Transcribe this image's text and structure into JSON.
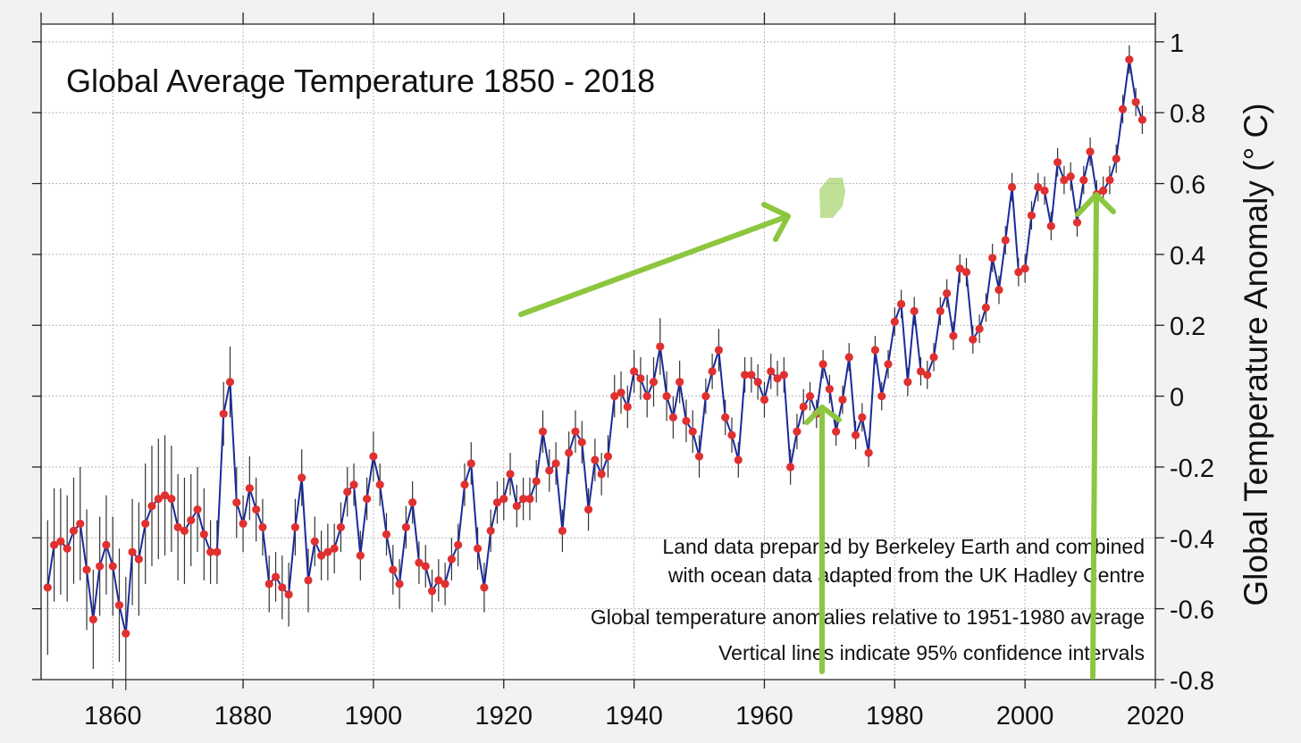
{
  "chart_data": {
    "type": "line",
    "title": "Global Average Temperature 1850 - 2018",
    "ylabel": "Global Temperature Anomaly (° C)",
    "xlabel": "",
    "xlim": [
      1849,
      2020
    ],
    "ylim": [
      -0.8,
      1.05
    ],
    "x_ticks": [
      1860,
      1880,
      1900,
      1920,
      1940,
      1960,
      1980,
      2000,
      2020
    ],
    "x_tick_labels": [
      "1860",
      "1880",
      "1900",
      "1920",
      "1940",
      "1960",
      "1980",
      "2000",
      "2020"
    ],
    "y_ticks": [
      -0.8,
      -0.6,
      -0.4,
      -0.2,
      0,
      0.2,
      0.4,
      0.6,
      0.8,
      1
    ],
    "y_tick_labels": [
      "-0.8",
      "-0.6",
      "-0.4",
      "-0.2",
      "0",
      "0.2",
      "0.4",
      "0.6",
      "0.8",
      "1"
    ],
    "grid": true,
    "line_color": "#1a2a9c",
    "marker_color": "#e03030",
    "errorbar_color": "#333333",
    "annotation_color": "#8dc63f",
    "annotations": [
      "Land data prepared by Berkeley Earth and combined",
      "with ocean data adapted from the UK Hadley Centre",
      "Global temperature anomalies relative to 1951-1980 average",
      "Vertical lines indicate 95% confidence intervals"
    ],
    "x": [
      1850,
      1851,
      1852,
      1853,
      1854,
      1855,
      1856,
      1857,
      1858,
      1859,
      1860,
      1861,
      1862,
      1863,
      1864,
      1865,
      1866,
      1867,
      1868,
      1869,
      1870,
      1871,
      1872,
      1873,
      1874,
      1875,
      1876,
      1877,
      1878,
      1879,
      1880,
      1881,
      1882,
      1883,
      1884,
      1885,
      1886,
      1887,
      1888,
      1889,
      1890,
      1891,
      1892,
      1893,
      1894,
      1895,
      1896,
      1897,
      1898,
      1899,
      1900,
      1901,
      1902,
      1903,
      1904,
      1905,
      1906,
      1907,
      1908,
      1909,
      1910,
      1911,
      1912,
      1913,
      1914,
      1915,
      1916,
      1917,
      1918,
      1919,
      1920,
      1921,
      1922,
      1923,
      1924,
      1925,
      1926,
      1927,
      1928,
      1929,
      1930,
      1931,
      1932,
      1933,
      1934,
      1935,
      1936,
      1937,
      1938,
      1939,
      1940,
      1941,
      1942,
      1943,
      1944,
      1945,
      1946,
      1947,
      1948,
      1949,
      1950,
      1951,
      1952,
      1953,
      1954,
      1955,
      1956,
      1957,
      1958,
      1959,
      1960,
      1961,
      1962,
      1963,
      1964,
      1965,
      1966,
      1967,
      1968,
      1969,
      1970,
      1971,
      1972,
      1973,
      1974,
      1975,
      1976,
      1977,
      1978,
      1979,
      1980,
      1981,
      1982,
      1983,
      1984,
      1985,
      1986,
      1987,
      1988,
      1989,
      1990,
      1991,
      1992,
      1993,
      1994,
      1995,
      1996,
      1997,
      1998,
      1999,
      2000,
      2001,
      2002,
      2003,
      2004,
      2005,
      2006,
      2007,
      2008,
      2009,
      2010,
      2011,
      2012,
      2013,
      2014,
      2015,
      2016,
      2017,
      2018
    ],
    "values": [
      -0.54,
      -0.42,
      -0.41,
      -0.43,
      -0.38,
      -0.36,
      -0.49,
      -0.63,
      -0.48,
      -0.42,
      -0.48,
      -0.59,
      -0.67,
      -0.44,
      -0.46,
      -0.36,
      -0.31,
      -0.29,
      -0.28,
      -0.29,
      -0.37,
      -0.38,
      -0.35,
      -0.32,
      -0.39,
      -0.44,
      -0.44,
      -0.05,
      0.04,
      -0.3,
      -0.36,
      -0.26,
      -0.32,
      -0.37,
      -0.53,
      -0.51,
      -0.54,
      -0.56,
      -0.37,
      -0.23,
      -0.52,
      -0.41,
      -0.45,
      -0.44,
      -0.43,
      -0.37,
      -0.27,
      -0.25,
      -0.45,
      -0.29,
      -0.17,
      -0.25,
      -0.39,
      -0.49,
      -0.53,
      -0.37,
      -0.3,
      -0.47,
      -0.48,
      -0.55,
      -0.52,
      -0.53,
      -0.46,
      -0.42,
      -0.25,
      -0.19,
      -0.43,
      -0.54,
      -0.38,
      -0.3,
      -0.29,
      -0.22,
      -0.31,
      -0.29,
      -0.29,
      -0.24,
      -0.1,
      -0.21,
      -0.19,
      -0.38,
      -0.16,
      -0.1,
      -0.13,
      -0.32,
      -0.18,
      -0.22,
      -0.17,
      0.0,
      0.01,
      -0.03,
      0.07,
      0.05,
      0.0,
      0.04,
      0.14,
      0.0,
      -0.06,
      0.04,
      -0.07,
      -0.1,
      -0.17,
      0.0,
      0.07,
      0.13,
      -0.06,
      -0.11,
      -0.18,
      0.06,
      0.06,
      0.04,
      -0.01,
      0.07,
      0.05,
      0.06,
      -0.2,
      -0.1,
      -0.03,
      0.0,
      -0.05,
      0.09,
      0.02,
      -0.1,
      -0.01,
      0.11,
      -0.11,
      -0.06,
      -0.16,
      0.13,
      0.0,
      0.09,
      0.21,
      0.26,
      0.04,
      0.24,
      0.07,
      0.06,
      0.11,
      0.24,
      0.29,
      0.17,
      0.36,
      0.35,
      0.16,
      0.19,
      0.25,
      0.39,
      0.3,
      0.44,
      0.59,
      0.35,
      0.36,
      0.51,
      0.59,
      0.58,
      0.48,
      0.66,
      0.61,
      0.62,
      0.49,
      0.61,
      0.69,
      0.57,
      0.58,
      0.61,
      0.67,
      0.81,
      0.95,
      0.83,
      0.78
    ],
    "ci": [
      0.19,
      0.16,
      0.15,
      0.15,
      0.15,
      0.16,
      0.17,
      0.14,
      0.14,
      0.14,
      0.14,
      0.16,
      0.16,
      0.15,
      0.16,
      0.17,
      0.17,
      0.17,
      0.17,
      0.15,
      0.15,
      0.15,
      0.13,
      0.12,
      0.13,
      0.09,
      0.09,
      0.09,
      0.1,
      0.1,
      0.08,
      0.09,
      0.09,
      0.08,
      0.08,
      0.07,
      0.09,
      0.09,
      0.08,
      0.08,
      0.09,
      0.07,
      0.07,
      0.08,
      0.07,
      0.07,
      0.07,
      0.06,
      0.07,
      0.06,
      0.07,
      0.06,
      0.06,
      0.07,
      0.07,
      0.06,
      0.06,
      0.06,
      0.06,
      0.06,
      0.06,
      0.06,
      0.06,
      0.06,
      0.06,
      0.06,
      0.06,
      0.07,
      0.06,
      0.06,
      0.06,
      0.06,
      0.06,
      0.06,
      0.06,
      0.06,
      0.06,
      0.06,
      0.06,
      0.06,
      0.06,
      0.06,
      0.06,
      0.06,
      0.06,
      0.06,
      0.06,
      0.06,
      0.06,
      0.06,
      0.06,
      0.06,
      0.06,
      0.07,
      0.08,
      0.07,
      0.06,
      0.06,
      0.06,
      0.06,
      0.06,
      0.05,
      0.05,
      0.06,
      0.05,
      0.05,
      0.05,
      0.05,
      0.05,
      0.05,
      0.05,
      0.05,
      0.05,
      0.05,
      0.05,
      0.05,
      0.05,
      0.04,
      0.04,
      0.04,
      0.04,
      0.04,
      0.04,
      0.04,
      0.04,
      0.04,
      0.04,
      0.04,
      0.04,
      0.04,
      0.04,
      0.04,
      0.04,
      0.04,
      0.04,
      0.04,
      0.04,
      0.04,
      0.04,
      0.04,
      0.04,
      0.04,
      0.04,
      0.04,
      0.04,
      0.04,
      0.04,
      0.04,
      0.04,
      0.04,
      0.04,
      0.04,
      0.04,
      0.04,
      0.04,
      0.04,
      0.04,
      0.04,
      0.04,
      0.04,
      0.04,
      0.04,
      0.04,
      0.04,
      0.04,
      0.04,
      0.04,
      0.04,
      0.04,
      0.04,
      0.04
    ]
  }
}
